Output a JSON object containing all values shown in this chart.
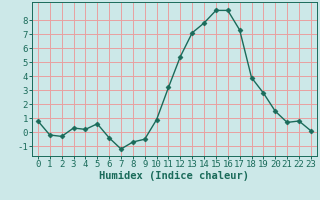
{
  "x": [
    0,
    1,
    2,
    3,
    4,
    5,
    6,
    7,
    8,
    9,
    10,
    11,
    12,
    13,
    14,
    15,
    16,
    17,
    18,
    19,
    20,
    21,
    22,
    23
  ],
  "y": [
    0.8,
    -0.2,
    -0.3,
    0.3,
    0.2,
    0.6,
    -0.4,
    -1.2,
    -0.7,
    -0.5,
    0.9,
    3.2,
    5.4,
    7.1,
    7.8,
    8.7,
    8.7,
    7.3,
    3.9,
    2.8,
    1.5,
    0.7,
    0.8,
    0.1
  ],
  "line_color": "#1a6b5a",
  "marker": "D",
  "markersize": 2.5,
  "linewidth": 1.0,
  "bg_color": "#cce8e8",
  "grid_color": "#e8a0a0",
  "xlabel": "Humidex (Indice chaleur)",
  "xlabel_fontsize": 7.5,
  "tick_fontsize": 6.5,
  "xlim": [
    -0.5,
    23.5
  ],
  "ylim": [
    -1.7,
    9.3
  ],
  "yticks": [
    -1,
    0,
    1,
    2,
    3,
    4,
    5,
    6,
    7,
    8
  ],
  "xticks": [
    0,
    1,
    2,
    3,
    4,
    5,
    6,
    7,
    8,
    9,
    10,
    11,
    12,
    13,
    14,
    15,
    16,
    17,
    18,
    19,
    20,
    21,
    22,
    23
  ]
}
